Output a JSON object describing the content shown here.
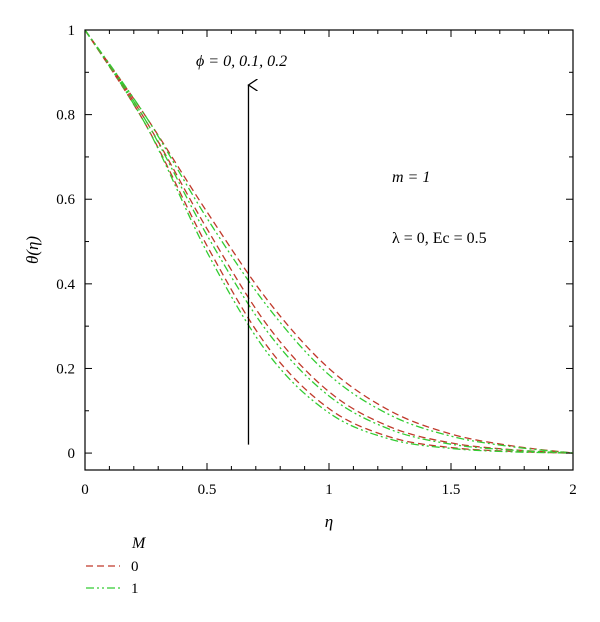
{
  "chart_data": {
    "type": "line",
    "title": "",
    "xlabel": "η",
    "ylabel": "θ(η)",
    "xlim": [
      0,
      2
    ],
    "ylim": [
      -0.04,
      1
    ],
    "xticks": [
      0,
      0.5,
      1,
      1.5,
      2
    ],
    "xtick_labels": [
      "0",
      "0.5",
      "1",
      "1.5",
      "2"
    ],
    "yticks": [
      0,
      0.2,
      0.4,
      0.6,
      0.8,
      1
    ],
    "ytick_labels": [
      "0",
      "0.2",
      "0.4",
      "0.6",
      "0.8",
      "1"
    ],
    "grid": false,
    "legend": {
      "title": "M",
      "placement": "bottom-left-outside",
      "entries": [
        {
          "label": "0",
          "color": "#c0392b",
          "style": "dashed"
        },
        {
          "label": "1",
          "color": "#33cc33",
          "style": "dash-dot-dot"
        }
      ]
    },
    "annotations": {
      "arrow_label": "ϕ = 0, 0.1, 0.2",
      "m_label": "m = 1",
      "lambda_label": "λ = 0, Ec = 0.5"
    },
    "arrow": {
      "x": 0.67,
      "y_start": 0.02,
      "y_end": 0.87
    },
    "x": [
      0,
      0.25,
      0.5,
      0.75,
      1.0,
      1.25,
      1.5,
      1.75,
      2.0
    ],
    "series": [
      {
        "group": "M=0",
        "color": "#c0392b",
        "style": "dashed",
        "values": [
          1.0,
          0.775,
          0.49,
          0.25,
          0.105,
          0.038,
          0.013,
          0.004,
          0.0
        ]
      },
      {
        "group": "M=1",
        "color": "#33cc33",
        "style": "dash-dot-dot",
        "values": [
          1.0,
          0.775,
          0.475,
          0.235,
          0.095,
          0.033,
          0.011,
          0.003,
          0.0
        ]
      },
      {
        "group": "M=0",
        "color": "#c0392b",
        "style": "dashed",
        "values": [
          1.0,
          0.785,
          0.53,
          0.3,
          0.145,
          0.062,
          0.024,
          0.008,
          0.0
        ]
      },
      {
        "group": "M=1",
        "color": "#33cc33",
        "style": "dash-dot-dot",
        "values": [
          1.0,
          0.785,
          0.515,
          0.285,
          0.135,
          0.056,
          0.021,
          0.007,
          0.0
        ]
      },
      {
        "group": "M=0",
        "color": "#c0392b",
        "style": "dashed",
        "values": [
          1.0,
          0.795,
          0.57,
          0.36,
          0.2,
          0.1,
          0.045,
          0.017,
          0.0
        ]
      },
      {
        "group": "M=1",
        "color": "#33cc33",
        "style": "dash-dot-dot",
        "values": [
          1.0,
          0.795,
          0.555,
          0.345,
          0.185,
          0.09,
          0.04,
          0.015,
          0.0
        ]
      }
    ]
  }
}
